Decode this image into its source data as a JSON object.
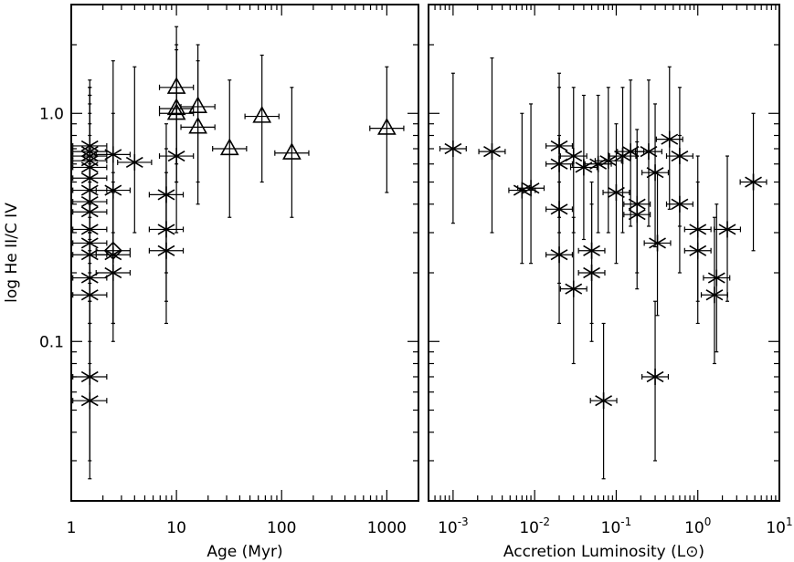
{
  "chart_data": [
    {
      "type": "scatter",
      "xlabel": "Age (Myr)",
      "ylabel": "log He II/C IV",
      "xscale": "log",
      "yscale": "log",
      "xlim": [
        1,
        2000
      ],
      "ylim": [
        0.02,
        3
      ],
      "xticks": [
        {
          "v": 1,
          "label": "1"
        },
        {
          "v": 10,
          "label": "10"
        },
        {
          "v": 100,
          "label": "100"
        },
        {
          "v": 1000,
          "label": "1000"
        }
      ],
      "yticks": [
        {
          "v": 0.1,
          "label": "0.1"
        },
        {
          "v": 1,
          "label": "1.0"
        }
      ],
      "points": [
        {
          "x": 1.5,
          "y": 0.72,
          "ylo": 0.3,
          "yhi": 1.4,
          "m": "star"
        },
        {
          "x": 1.5,
          "y": 0.68,
          "ylo": 0.3,
          "yhi": 1.3,
          "m": "star"
        },
        {
          "x": 1.5,
          "y": 0.65,
          "ylo": 0.3,
          "yhi": 1.3,
          "m": "star"
        },
        {
          "x": 1.5,
          "y": 0.62,
          "ylo": 0.3,
          "yhi": 1.2,
          "m": "star"
        },
        {
          "x": 1.5,
          "y": 0.58,
          "ylo": 0.28,
          "yhi": 1.2,
          "m": "star"
        },
        {
          "x": 1.5,
          "y": 0.52,
          "ylo": 0.25,
          "yhi": 1.1,
          "m": "star"
        },
        {
          "x": 1.5,
          "y": 0.46,
          "ylo": 0.22,
          "yhi": 1.0,
          "m": "star"
        },
        {
          "x": 1.5,
          "y": 0.41,
          "ylo": 0.2,
          "yhi": 0.9,
          "m": "star"
        },
        {
          "x": 1.5,
          "y": 0.37,
          "ylo": 0.18,
          "yhi": 0.8,
          "m": "star"
        },
        {
          "x": 1.5,
          "y": 0.31,
          "ylo": 0.15,
          "yhi": 0.7,
          "m": "star"
        },
        {
          "x": 1.5,
          "y": 0.27,
          "ylo": 0.12,
          "yhi": 0.6,
          "m": "star"
        },
        {
          "x": 1.5,
          "y": 0.24,
          "ylo": 0.1,
          "yhi": 0.5,
          "m": "star"
        },
        {
          "x": 1.5,
          "y": 0.19,
          "ylo": 0.08,
          "yhi": 0.4,
          "m": "star"
        },
        {
          "x": 1.5,
          "y": 0.16,
          "ylo": 0.07,
          "yhi": 0.35,
          "m": "star"
        },
        {
          "x": 1.5,
          "y": 0.07,
          "ylo": 0.03,
          "yhi": 0.15,
          "m": "star"
        },
        {
          "x": 1.5,
          "y": 0.055,
          "ylo": 0.025,
          "yhi": 0.12,
          "m": "star"
        },
        {
          "x": 2.5,
          "y": 0.66,
          "ylo": 0.3,
          "yhi": 1.7,
          "m": "star"
        },
        {
          "x": 2.5,
          "y": 0.46,
          "ylo": 0.2,
          "yhi": 1.0,
          "m": "star"
        },
        {
          "x": 2.5,
          "y": 0.25,
          "ylo": 0.12,
          "yhi": 0.55,
          "m": "diamond"
        },
        {
          "x": 2.5,
          "y": 0.24,
          "ylo": 0.12,
          "yhi": 0.5,
          "m": "star"
        },
        {
          "x": 2.5,
          "y": 0.2,
          "ylo": 0.1,
          "yhi": 0.45,
          "m": "star"
        },
        {
          "x": 4.0,
          "y": 0.61,
          "ylo": 0.3,
          "yhi": 1.6,
          "m": "star"
        },
        {
          "x": 8.0,
          "y": 0.44,
          "ylo": 0.2,
          "yhi": 0.9,
          "m": "star"
        },
        {
          "x": 8.0,
          "y": 0.31,
          "ylo": 0.15,
          "yhi": 0.7,
          "m": "star"
        },
        {
          "x": 8.0,
          "y": 0.25,
          "ylo": 0.12,
          "yhi": 0.55,
          "m": "star"
        },
        {
          "x": 10.0,
          "y": 0.65,
          "ylo": 0.3,
          "yhi": 1.3,
          "m": "star"
        },
        {
          "x": 10.0,
          "y": 1.3,
          "ylo": 0.6,
          "yhi": 2.4,
          "m": "triangle"
        },
        {
          "x": 10.0,
          "y": 1.05,
          "ylo": 0.5,
          "yhi": 2.0,
          "m": "triangle"
        },
        {
          "x": 10.0,
          "y": 1.0,
          "ylo": 0.5,
          "yhi": 1.9,
          "m": "triangle"
        },
        {
          "x": 16.0,
          "y": 1.07,
          "ylo": 0.5,
          "yhi": 2.0,
          "m": "triangle"
        },
        {
          "x": 16.0,
          "y": 0.87,
          "ylo": 0.4,
          "yhi": 1.7,
          "m": "triangle"
        },
        {
          "x": 32.0,
          "y": 0.7,
          "ylo": 0.35,
          "yhi": 1.4,
          "m": "triangle"
        },
        {
          "x": 65.0,
          "y": 0.97,
          "ylo": 0.5,
          "yhi": 1.8,
          "m": "triangle"
        },
        {
          "x": 125.0,
          "y": 0.67,
          "ylo": 0.35,
          "yhi": 1.3,
          "m": "triangle"
        },
        {
          "x": 1000.0,
          "y": 0.86,
          "ylo": 0.45,
          "yhi": 1.6,
          "m": "triangle"
        }
      ]
    },
    {
      "type": "scatter",
      "xlabel": "Accretion Luminosity (L⊙)",
      "ylabel": "",
      "xscale": "log",
      "yscale": "log",
      "xlim": [
        0.0005,
        10
      ],
      "ylim": [
        0.02,
        3
      ],
      "xticks": [
        {
          "v": 0.001,
          "label": "10",
          "exp": "-3"
        },
        {
          "v": 0.01,
          "label": "10",
          "exp": "-2"
        },
        {
          "v": 0.1,
          "label": "10",
          "exp": "-1"
        },
        {
          "v": 1,
          "label": "10",
          "exp": "0"
        },
        {
          "v": 10,
          "label": "10",
          "exp": "1"
        }
      ],
      "points": [
        {
          "x": 0.001,
          "y": 0.7,
          "ylo": 0.33,
          "yhi": 1.5,
          "m": "star"
        },
        {
          "x": 0.003,
          "y": 0.68,
          "ylo": 0.3,
          "yhi": 1.75,
          "m": "star"
        },
        {
          "x": 0.007,
          "y": 0.46,
          "ylo": 0.22,
          "yhi": 1.0,
          "m": "star"
        },
        {
          "x": 0.009,
          "y": 0.47,
          "ylo": 0.22,
          "yhi": 1.1,
          "m": "star"
        },
        {
          "x": 0.02,
          "y": 0.72,
          "ylo": 0.35,
          "yhi": 1.5,
          "m": "star"
        },
        {
          "x": 0.02,
          "y": 0.6,
          "ylo": 0.3,
          "yhi": 1.3,
          "m": "star"
        },
        {
          "x": 0.02,
          "y": 0.38,
          "ylo": 0.18,
          "yhi": 0.8,
          "m": "star"
        },
        {
          "x": 0.02,
          "y": 0.24,
          "ylo": 0.12,
          "yhi": 0.5,
          "m": "star"
        },
        {
          "x": 0.03,
          "y": 0.65,
          "ylo": 0.3,
          "yhi": 1.3,
          "m": "star"
        },
        {
          "x": 0.03,
          "y": 0.17,
          "ylo": 0.08,
          "yhi": 0.35,
          "m": "star"
        },
        {
          "x": 0.04,
          "y": 0.58,
          "ylo": 0.28,
          "yhi": 1.2,
          "m": "star"
        },
        {
          "x": 0.05,
          "y": 0.25,
          "ylo": 0.12,
          "yhi": 0.5,
          "m": "star"
        },
        {
          "x": 0.05,
          "y": 0.2,
          "ylo": 0.1,
          "yhi": 0.4,
          "m": "star"
        },
        {
          "x": 0.06,
          "y": 0.6,
          "ylo": 0.3,
          "yhi": 1.2,
          "m": "star"
        },
        {
          "x": 0.07,
          "y": 0.055,
          "ylo": 0.025,
          "yhi": 0.12,
          "m": "star"
        },
        {
          "x": 0.08,
          "y": 0.62,
          "ylo": 0.3,
          "yhi": 1.3,
          "m": "star"
        },
        {
          "x": 0.1,
          "y": 0.45,
          "ylo": 0.22,
          "yhi": 0.9,
          "m": "star"
        },
        {
          "x": 0.12,
          "y": 0.65,
          "ylo": 0.3,
          "yhi": 1.3,
          "m": "star"
        },
        {
          "x": 0.15,
          "y": 0.68,
          "ylo": 0.32,
          "yhi": 1.4,
          "m": "star"
        },
        {
          "x": 0.18,
          "y": 0.4,
          "ylo": 0.2,
          "yhi": 0.85,
          "m": "star"
        },
        {
          "x": 0.18,
          "y": 0.36,
          "ylo": 0.17,
          "yhi": 0.75,
          "m": "star"
        },
        {
          "x": 0.25,
          "y": 0.68,
          "ylo": 0.32,
          "yhi": 1.4,
          "m": "star"
        },
        {
          "x": 0.3,
          "y": 0.55,
          "ylo": 0.26,
          "yhi": 1.1,
          "m": "star"
        },
        {
          "x": 0.3,
          "y": 0.07,
          "ylo": 0.03,
          "yhi": 0.15,
          "m": "star"
        },
        {
          "x": 0.32,
          "y": 0.27,
          "ylo": 0.13,
          "yhi": 0.55,
          "m": "star"
        },
        {
          "x": 0.45,
          "y": 0.77,
          "ylo": 0.38,
          "yhi": 1.6,
          "m": "star"
        },
        {
          "x": 0.6,
          "y": 0.65,
          "ylo": 0.32,
          "yhi": 1.3,
          "m": "star"
        },
        {
          "x": 0.6,
          "y": 0.4,
          "ylo": 0.2,
          "yhi": 0.8,
          "m": "star"
        },
        {
          "x": 1.0,
          "y": 0.31,
          "ylo": 0.15,
          "yhi": 0.65,
          "m": "star"
        },
        {
          "x": 1.0,
          "y": 0.25,
          "ylo": 0.12,
          "yhi": 0.5,
          "m": "star"
        },
        {
          "x": 1.7,
          "y": 0.19,
          "ylo": 0.09,
          "yhi": 0.4,
          "m": "star"
        },
        {
          "x": 1.6,
          "y": 0.16,
          "ylo": 0.08,
          "yhi": 0.35,
          "m": "star"
        },
        {
          "x": 2.3,
          "y": 0.31,
          "ylo": 0.15,
          "yhi": 0.65,
          "m": "star"
        },
        {
          "x": 4.8,
          "y": 0.5,
          "ylo": 0.25,
          "yhi": 1.0,
          "m": "star"
        }
      ]
    }
  ]
}
